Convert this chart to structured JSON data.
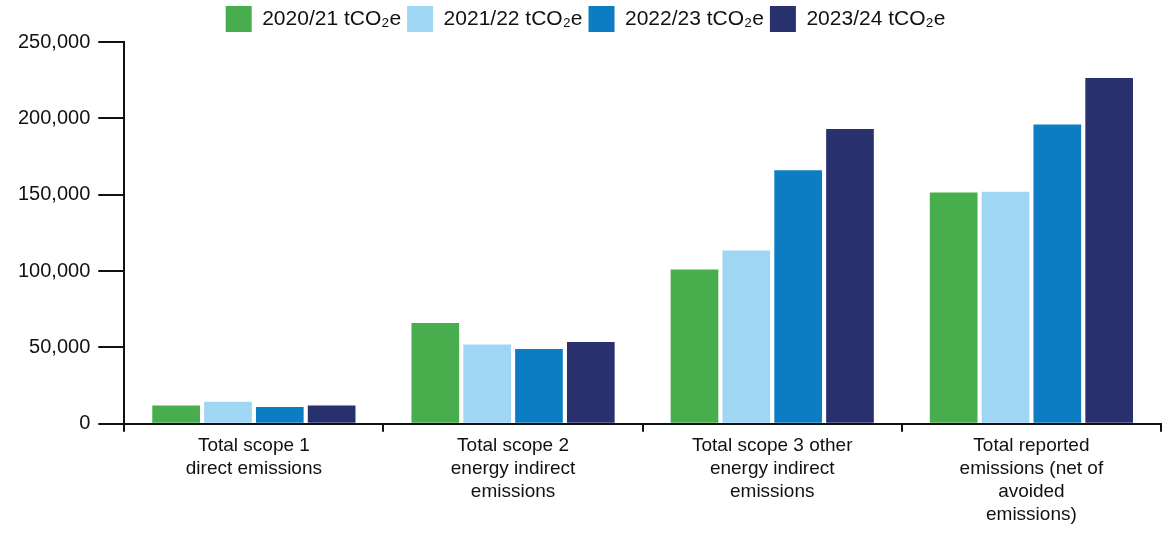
{
  "chart_data": {
    "type": "bar",
    "categories": [
      "Total scope 1 direct emissions",
      "Total scope 2 energy indirect emissions",
      "Total scope 3 other energy indirect emissions",
      "Total reported emissions (net of avoided emissions)"
    ],
    "series": [
      {
        "name": "2020/21 tCO₂e",
        "color": "#47ad4d",
        "values": [
          12000,
          66000,
          101000,
          151500
        ]
      },
      {
        "name": "2021/22 tCO₂e",
        "color": "#9fd6f3",
        "values": [
          14500,
          52000,
          113500,
          152000
        ]
      },
      {
        "name": "2022/23 tCO₂e",
        "color": "#0c7dc3",
        "values": [
          11000,
          49000,
          166000,
          196000
        ]
      },
      {
        "name": "2023/24 tCO₂e",
        "color": "#28316d",
        "values": [
          12000,
          53500,
          193000,
          226500
        ]
      }
    ],
    "ylim": [
      0,
      250000
    ],
    "yticks": [
      0,
      {
        "value": 50000,
        "label": "50,000"
      },
      {
        "value": 100000,
        "label": "100,000"
      },
      {
        "value": 150000,
        "label": "150,000"
      },
      {
        "value": 200000,
        "label": "200,000"
      },
      {
        "value": 250000,
        "label": "250,000"
      }
    ],
    "grid": false,
    "legend": "top"
  }
}
